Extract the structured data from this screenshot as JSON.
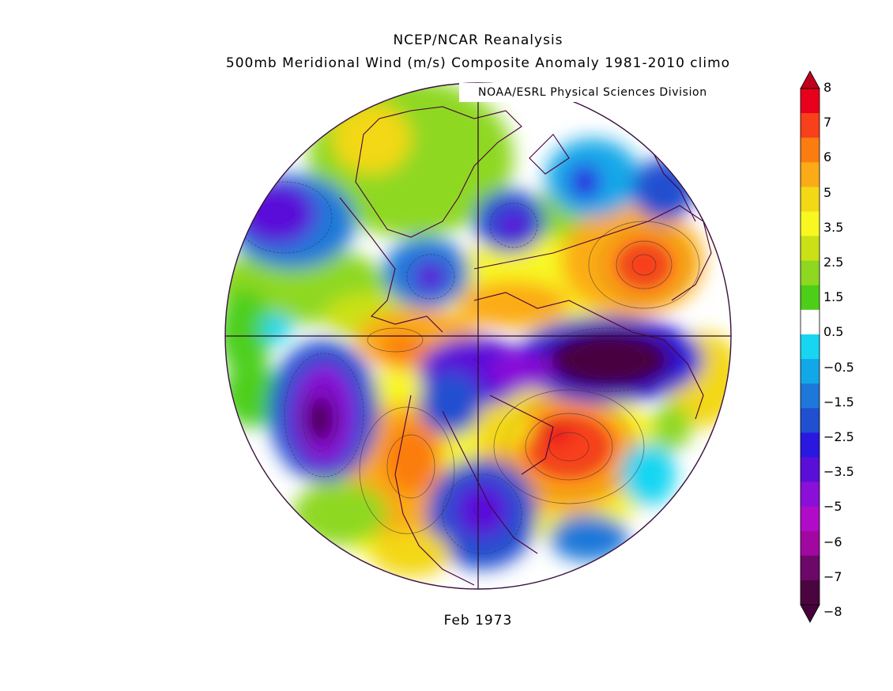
{
  "header": {
    "line1": "NCEP/NCAR Reanalysis",
    "line2": "500mb Meridional Wind (m/s) Composite Anomaly 1981-2010 climo",
    "credit": "NOAA/ESRL Physical Sciences Division"
  },
  "footer": {
    "period": "Feb 1973"
  },
  "map": {
    "projection": "north polar stereographic",
    "field": "500mb meridional wind anomaly",
    "land_outline_color": "#4a0040",
    "grid_color": "#2b0a2b"
  },
  "colorbar": {
    "labels": [
      "8",
      "7",
      "6",
      "5",
      "3.5",
      "2.5",
      "1.5",
      "0.5",
      "-0.5",
      "-1.5",
      "-2.5",
      "-3.5",
      "-5",
      "-6",
      "-7",
      "-8"
    ],
    "colors": [
      "#e8001c",
      "#f8401a",
      "#fb7d10",
      "#fbab18",
      "#f3d816",
      "#f8f820",
      "#cbe116",
      "#8ed822",
      "#4dcf1a",
      "#ffffff",
      "#16d6f2",
      "#12a8e8",
      "#1e78d9",
      "#2050d0",
      "#2a18e0",
      "#5a0fd8",
      "#8a10d8",
      "#b00cc8",
      "#a008a0",
      "#6c0868",
      "#4a0440"
    ],
    "overflow_top_color": "#c0001c",
    "overflow_bottom_color": "#48003c"
  }
}
